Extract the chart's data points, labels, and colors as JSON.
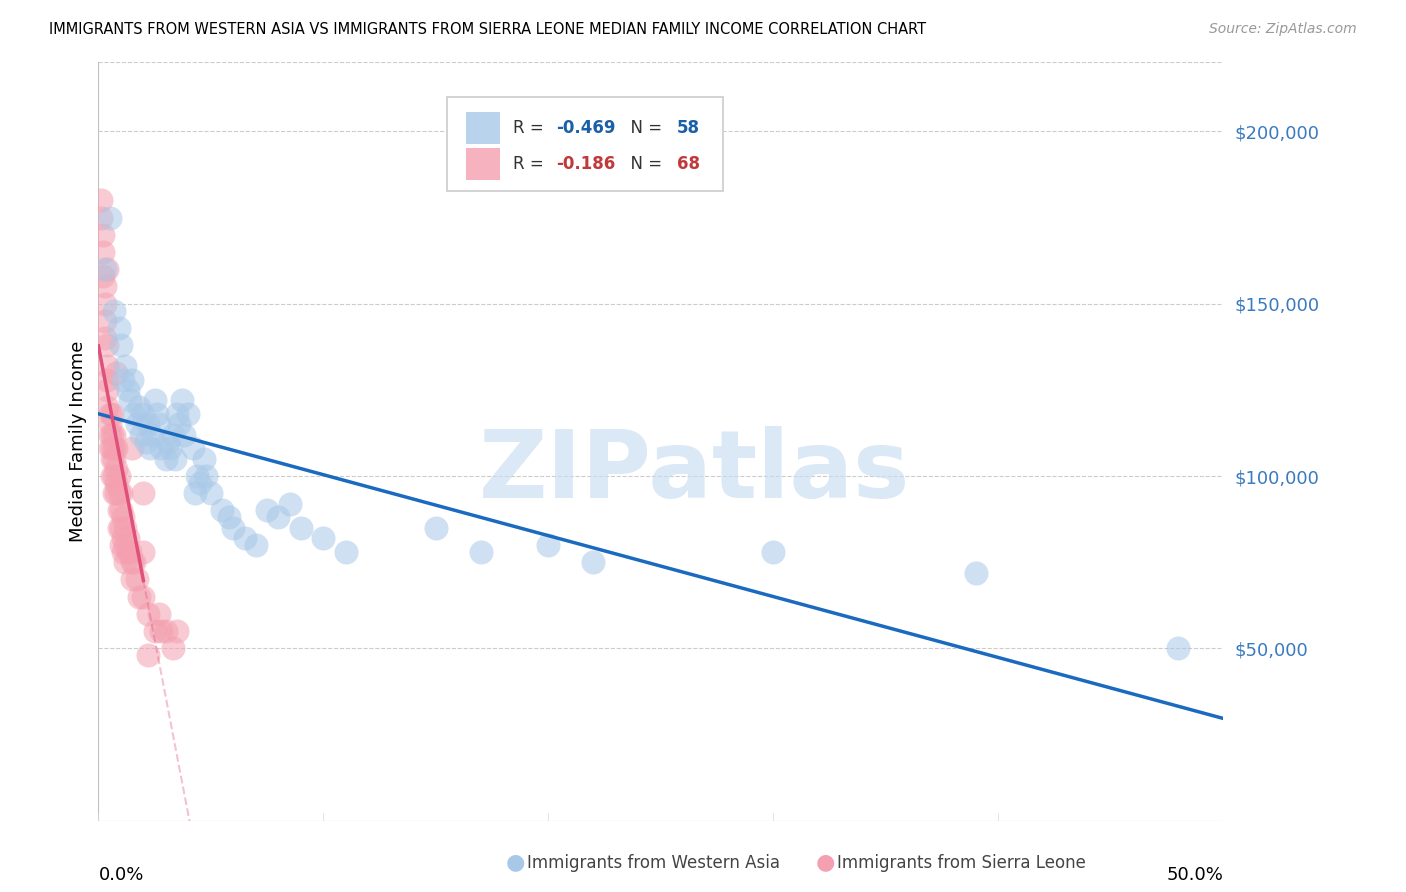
{
  "title": "IMMIGRANTS FROM WESTERN ASIA VS IMMIGRANTS FROM SIERRA LEONE MEDIAN FAMILY INCOME CORRELATION CHART",
  "source": "Source: ZipAtlas.com",
  "ylabel": "Median Family Income",
  "right_ytick_labels": [
    "$50,000",
    "$100,000",
    "$150,000",
    "$200,000"
  ],
  "right_ytick_values": [
    50000,
    100000,
    150000,
    200000
  ],
  "ylim": [
    0,
    220000
  ],
  "xlim": [
    0.0,
    0.5
  ],
  "legend_blue_R": "-0.469",
  "legend_blue_N": "58",
  "legend_pink_R": "-0.186",
  "legend_pink_N": "68",
  "watermark": "ZIPatlas",
  "blue_color": "#a8c8e8",
  "pink_color": "#f4a0b0",
  "blue_line_color": "#1a6bbf",
  "pink_line_color": "#e0507a",
  "blue_scatter": [
    [
      0.003,
      160000
    ],
    [
      0.005,
      175000
    ],
    [
      0.007,
      148000
    ],
    [
      0.009,
      143000
    ],
    [
      0.01,
      138000
    ],
    [
      0.011,
      128000
    ],
    [
      0.012,
      132000
    ],
    [
      0.013,
      125000
    ],
    [
      0.014,
      122000
    ],
    [
      0.015,
      128000
    ],
    [
      0.016,
      118000
    ],
    [
      0.017,
      115000
    ],
    [
      0.018,
      120000
    ],
    [
      0.019,
      112000
    ],
    [
      0.02,
      118000
    ],
    [
      0.021,
      110000
    ],
    [
      0.022,
      115000
    ],
    [
      0.023,
      108000
    ],
    [
      0.024,
      112000
    ],
    [
      0.025,
      122000
    ],
    [
      0.026,
      118000
    ],
    [
      0.027,
      115000
    ],
    [
      0.028,
      108000
    ],
    [
      0.03,
      105000
    ],
    [
      0.031,
      110000
    ],
    [
      0.032,
      108000
    ],
    [
      0.033,
      112000
    ],
    [
      0.034,
      105000
    ],
    [
      0.035,
      118000
    ],
    [
      0.036,
      115000
    ],
    [
      0.037,
      122000
    ],
    [
      0.038,
      112000
    ],
    [
      0.04,
      118000
    ],
    [
      0.042,
      108000
    ],
    [
      0.043,
      95000
    ],
    [
      0.044,
      100000
    ],
    [
      0.045,
      98000
    ],
    [
      0.047,
      105000
    ],
    [
      0.048,
      100000
    ],
    [
      0.05,
      95000
    ],
    [
      0.055,
      90000
    ],
    [
      0.058,
      88000
    ],
    [
      0.06,
      85000
    ],
    [
      0.065,
      82000
    ],
    [
      0.07,
      80000
    ],
    [
      0.075,
      90000
    ],
    [
      0.08,
      88000
    ],
    [
      0.085,
      92000
    ],
    [
      0.09,
      85000
    ],
    [
      0.1,
      82000
    ],
    [
      0.11,
      78000
    ],
    [
      0.15,
      85000
    ],
    [
      0.17,
      78000
    ],
    [
      0.2,
      80000
    ],
    [
      0.22,
      75000
    ],
    [
      0.3,
      78000
    ],
    [
      0.39,
      72000
    ],
    [
      0.48,
      50000
    ]
  ],
  "pink_scatter": [
    [
      0.001,
      180000
    ],
    [
      0.001,
      175000
    ],
    [
      0.002,
      170000
    ],
    [
      0.002,
      165000
    ],
    [
      0.002,
      158000
    ],
    [
      0.003,
      155000
    ],
    [
      0.003,
      150000
    ],
    [
      0.003,
      145000
    ],
    [
      0.003,
      140000
    ],
    [
      0.004,
      138000
    ],
    [
      0.004,
      132000
    ],
    [
      0.004,
      128000
    ],
    [
      0.004,
      125000
    ],
    [
      0.004,
      120000
    ],
    [
      0.005,
      118000
    ],
    [
      0.005,
      115000
    ],
    [
      0.005,
      112000
    ],
    [
      0.005,
      108000
    ],
    [
      0.006,
      118000
    ],
    [
      0.006,
      112000
    ],
    [
      0.006,
      108000
    ],
    [
      0.006,
      105000
    ],
    [
      0.006,
      100000
    ],
    [
      0.007,
      112000
    ],
    [
      0.007,
      108000
    ],
    [
      0.007,
      105000
    ],
    [
      0.007,
      100000
    ],
    [
      0.007,
      95000
    ],
    [
      0.008,
      108000
    ],
    [
      0.008,
      102000
    ],
    [
      0.008,
      98000
    ],
    [
      0.008,
      95000
    ],
    [
      0.009,
      100000
    ],
    [
      0.009,
      95000
    ],
    [
      0.009,
      90000
    ],
    [
      0.009,
      85000
    ],
    [
      0.01,
      95000
    ],
    [
      0.01,
      90000
    ],
    [
      0.01,
      85000
    ],
    [
      0.01,
      80000
    ],
    [
      0.011,
      88000
    ],
    [
      0.011,
      82000
    ],
    [
      0.011,
      78000
    ],
    [
      0.012,
      85000
    ],
    [
      0.012,
      80000
    ],
    [
      0.012,
      75000
    ],
    [
      0.013,
      82000
    ],
    [
      0.013,
      78000
    ],
    [
      0.014,
      78000
    ],
    [
      0.015,
      75000
    ],
    [
      0.015,
      70000
    ],
    [
      0.016,
      75000
    ],
    [
      0.017,
      70000
    ],
    [
      0.018,
      65000
    ],
    [
      0.02,
      78000
    ],
    [
      0.02,
      65000
    ],
    [
      0.022,
      60000
    ],
    [
      0.025,
      55000
    ],
    [
      0.027,
      60000
    ],
    [
      0.028,
      55000
    ],
    [
      0.03,
      55000
    ],
    [
      0.033,
      50000
    ],
    [
      0.035,
      55000
    ],
    [
      0.008,
      130000
    ],
    [
      0.004,
      160000
    ],
    [
      0.015,
      108000
    ],
    [
      0.02,
      95000
    ],
    [
      0.022,
      48000
    ]
  ]
}
